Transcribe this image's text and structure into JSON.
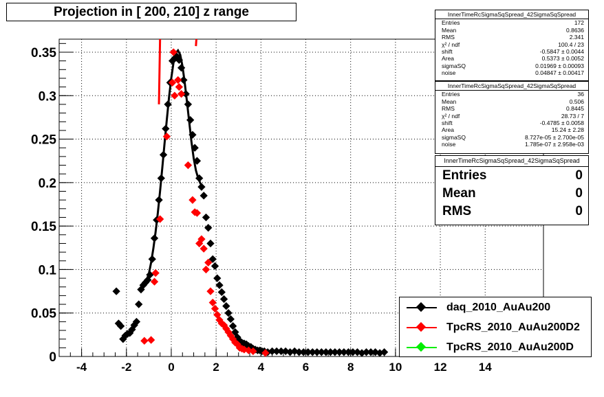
{
  "chart_data": {
    "type": "scatter",
    "title": "Projection in [ 200, 210] z range",
    "xlim": [
      -5,
      16.6
    ],
    "ylim": [
      0,
      0.365
    ],
    "xticks": [
      -4,
      -2,
      0,
      2,
      4,
      6,
      8,
      10,
      12,
      14
    ],
    "yticks": [
      0,
      0.05,
      0.1,
      0.15,
      0.2,
      0.25,
      0.3,
      0.35
    ],
    "ytick_labels": [
      "0",
      "0.05",
      "0.1",
      "0.15",
      "0.2",
      "0.25",
      "0.3",
      "0.35"
    ],
    "grid": true,
    "series": [
      {
        "name": "daq_2010_AuAu200",
        "color": "#000000",
        "points": [
          [
            -2.45,
            0.075
          ],
          [
            -2.35,
            0.038
          ],
          [
            -2.25,
            0.035
          ],
          [
            -2.15,
            0.02
          ],
          [
            -2.05,
            0.024
          ],
          [
            -1.95,
            0.026
          ],
          [
            -1.85,
            0.027
          ],
          [
            -1.75,
            0.031
          ],
          [
            -1.65,
            0.036
          ],
          [
            -1.55,
            0.04
          ],
          [
            -1.45,
            0.06
          ],
          [
            -1.35,
            0.077
          ],
          [
            -1.25,
            0.082
          ],
          [
            -1.15,
            0.085
          ],
          [
            -1.05,
            0.088
          ],
          [
            -0.95,
            0.094
          ],
          [
            -0.85,
            0.112
          ],
          [
            -0.75,
            0.136
          ],
          [
            -0.65,
            0.157
          ],
          [
            -0.55,
            0.18
          ],
          [
            -0.45,
            0.205
          ],
          [
            -0.35,
            0.232
          ],
          [
            -0.25,
            0.262
          ],
          [
            -0.15,
            0.29
          ],
          [
            -0.05,
            0.315
          ],
          [
            0.05,
            0.34
          ],
          [
            0.15,
            0.343
          ],
          [
            0.25,
            0.345
          ],
          [
            0.35,
            0.341
          ],
          [
            0.45,
            0.332
          ],
          [
            0.55,
            0.318
          ],
          [
            0.65,
            0.302
          ],
          [
            0.75,
            0.29
          ],
          [
            0.85,
            0.272
          ],
          [
            0.95,
            0.255
          ],
          [
            1.05,
            0.24
          ],
          [
            1.15,
            0.225
          ],
          [
            1.25,
            0.205
          ],
          [
            1.35,
            0.195
          ],
          [
            1.45,
            0.185
          ],
          [
            1.55,
            0.16
          ],
          [
            1.65,
            0.148
          ],
          [
            1.75,
            0.13
          ],
          [
            1.85,
            0.112
          ],
          [
            1.95,
            0.104
          ],
          [
            2.05,
            0.09
          ],
          [
            2.15,
            0.082
          ],
          [
            2.25,
            0.074
          ],
          [
            2.35,
            0.066
          ],
          [
            2.45,
            0.058
          ],
          [
            2.55,
            0.05
          ],
          [
            2.65,
            0.043
          ],
          [
            2.75,
            0.035
          ],
          [
            2.85,
            0.028
          ],
          [
            2.95,
            0.022
          ],
          [
            3.05,
            0.018
          ],
          [
            3.15,
            0.016
          ],
          [
            3.25,
            0.015
          ],
          [
            3.35,
            0.014
          ],
          [
            3.45,
            0.012
          ],
          [
            3.55,
            0.011
          ],
          [
            3.65,
            0.009
          ],
          [
            3.75,
            0.008
          ],
          [
            3.85,
            0.007
          ],
          [
            3.95,
            0.007
          ],
          [
            4.05,
            0.006
          ],
          [
            4.15,
            0.006
          ],
          [
            4.3,
            0.005
          ],
          [
            4.5,
            0.006
          ],
          [
            4.7,
            0.006
          ],
          [
            4.9,
            0.006
          ],
          [
            5.1,
            0.006
          ],
          [
            5.3,
            0.005
          ],
          [
            5.5,
            0.006
          ],
          [
            5.7,
            0.005
          ],
          [
            5.9,
            0.005
          ],
          [
            6.1,
            0.005
          ],
          [
            6.3,
            0.005
          ],
          [
            6.5,
            0.005
          ],
          [
            6.7,
            0.005
          ],
          [
            6.9,
            0.005
          ],
          [
            7.1,
            0.005
          ],
          [
            7.3,
            0.005
          ],
          [
            7.5,
            0.005
          ],
          [
            7.7,
            0.005
          ],
          [
            7.9,
            0.005
          ],
          [
            8.1,
            0.005
          ],
          [
            8.3,
            0.005
          ],
          [
            8.5,
            0.004
          ],
          [
            8.7,
            0.005
          ],
          [
            8.9,
            0.005
          ],
          [
            9.1,
            0.005
          ],
          [
            9.3,
            0.004
          ],
          [
            9.5,
            0.005
          ]
        ]
      },
      {
        "name": "TpcRS_2010_AuAu200D2",
        "color": "#ff0000",
        "points": [
          [
            -1.2,
            0.018
          ],
          [
            -0.9,
            0.019
          ],
          [
            -0.75,
            0.086
          ],
          [
            -0.7,
            0.096
          ],
          [
            -0.5,
            0.158
          ],
          [
            -0.2,
            0.253
          ],
          [
            0.05,
            0.315
          ],
          [
            0.1,
            0.35
          ],
          [
            0.15,
            0.3
          ],
          [
            0.3,
            0.318
          ],
          [
            0.35,
            0.31
          ],
          [
            0.45,
            0.302
          ],
          [
            0.75,
            0.22
          ],
          [
            0.95,
            0.18
          ],
          [
            1.05,
            0.166
          ],
          [
            1.15,
            0.165
          ],
          [
            1.25,
            0.13
          ],
          [
            1.35,
            0.135
          ],
          [
            1.45,
            0.124
          ],
          [
            1.55,
            0.1
          ],
          [
            1.65,
            0.108
          ],
          [
            1.75,
            0.075
          ],
          [
            1.85,
            0.062
          ],
          [
            1.95,
            0.055
          ],
          [
            2.05,
            0.048
          ],
          [
            2.15,
            0.042
          ],
          [
            2.25,
            0.038
          ],
          [
            2.35,
            0.036
          ],
          [
            2.45,
            0.032
          ],
          [
            2.55,
            0.028
          ],
          [
            2.65,
            0.024
          ],
          [
            2.75,
            0.02
          ],
          [
            2.85,
            0.016
          ],
          [
            2.95,
            0.014
          ],
          [
            3.05,
            0.01
          ],
          [
            3.15,
            0.009
          ],
          [
            3.25,
            0.008
          ],
          [
            3.45,
            0.007
          ],
          [
            3.65,
            0.006
          ],
          [
            4.2,
            0.004
          ]
        ]
      },
      {
        "name": "TpcRS_2010_AuAu200D",
        "color": "#00ee00",
        "points": []
      }
    ],
    "fit_curve": [
      [
        -1.25,
        0.082
      ],
      [
        -1.1,
        0.088
      ],
      [
        -1.0,
        0.095
      ],
      [
        -0.9,
        0.108
      ],
      [
        -0.8,
        0.124
      ],
      [
        -0.7,
        0.143
      ],
      [
        -0.6,
        0.165
      ],
      [
        -0.5,
        0.19
      ],
      [
        -0.4,
        0.217
      ],
      [
        -0.3,
        0.245
      ],
      [
        -0.2,
        0.272
      ],
      [
        -0.1,
        0.298
      ],
      [
        0.0,
        0.32
      ],
      [
        0.1,
        0.338
      ],
      [
        0.2,
        0.349
      ],
      [
        0.3,
        0.352
      ],
      [
        0.4,
        0.347
      ],
      [
        0.5,
        0.334
      ],
      [
        0.6,
        0.315
      ],
      [
        0.7,
        0.293
      ],
      [
        0.8,
        0.27
      ],
      [
        0.9,
        0.247
      ],
      [
        1.0,
        0.228
      ],
      [
        1.1,
        0.214
      ],
      [
        1.2,
        0.205
      ],
      [
        1.3,
        0.199
      ],
      [
        1.4,
        0.196
      ]
    ],
    "red_fit_fragments": [
      [
        [
          -0.55,
          0.29
        ],
        [
          -0.5,
          0.365
        ]
      ],
      [
        [
          1.1,
          0.357
        ],
        [
          1.12,
          0.365
        ]
      ]
    ]
  },
  "stats_boxes": [
    {
      "title": "InnerTimeRcSigmaSqSpread_42SigmaSqSpread",
      "rows": [
        [
          "Entries",
          "172"
        ],
        [
          "Mean",
          "0.8636"
        ],
        [
          "RMS",
          "2.341"
        ],
        [
          "χ² / ndf",
          "100.4 / 23"
        ],
        [
          "shift",
          "-0.5847 ± 0.0044"
        ],
        [
          "Area",
          "0.5373 ± 0.0052"
        ],
        [
          "sigmaSQ",
          "0.01969 ± 0.00093"
        ],
        [
          "noise",
          "0.04847 ± 0.00417"
        ]
      ]
    },
    {
      "title": "InnerTimeRcSigmaSqSpread_42SigmaSqSpread",
      "rows": [
        [
          "Entries",
          "36"
        ],
        [
          "Mean",
          "0.506"
        ],
        [
          "RMS",
          "0.8445"
        ],
        [
          "χ² / ndf",
          "28.73 / 7"
        ],
        [
          "shift",
          "-0.4785 ± 0.0058"
        ],
        [
          "Area",
          "15.24 ± 2.28"
        ],
        [
          "sigmaSQ",
          "8.727e-05 ± 2.700e-05"
        ],
        [
          "noise",
          "1.785e-07 ± 2.958e-03"
        ]
      ]
    }
  ],
  "big_stats": {
    "title": "InnerTimeRcSigmaSqSpread_42SigmaSqSpread",
    "rows": [
      [
        "Entries",
        "0"
      ],
      [
        "Mean",
        "0"
      ],
      [
        "RMS",
        "0"
      ]
    ]
  },
  "legend": [
    {
      "label": "daq_2010_AuAu200",
      "color": "#000000"
    },
    {
      "label": "TpcRS_2010_AuAu200D2",
      "color": "#ff0000"
    },
    {
      "label": "TpcRS_2010_AuAu200D",
      "color": "#00ee00"
    }
  ]
}
